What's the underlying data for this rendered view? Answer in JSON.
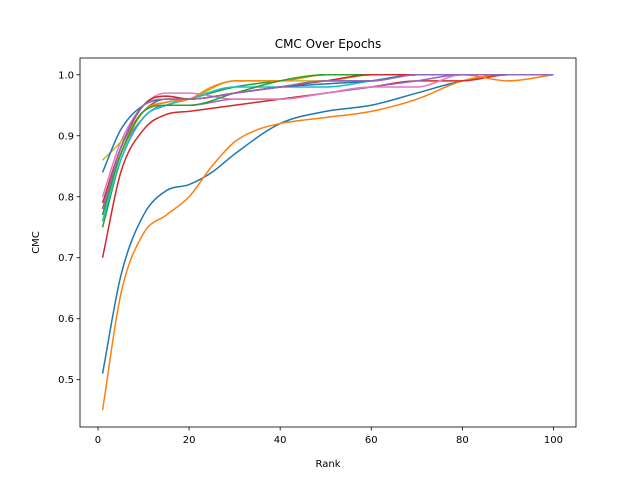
{
  "chart_data": {
    "type": "line",
    "title": "CMC Over Epochs",
    "xlabel": "Rank",
    "ylabel": "CMC",
    "xlim": [
      -3.95,
      104.95
    ],
    "ylim": [
      0.4225,
      1.0275
    ],
    "xticks": [
      0,
      20,
      40,
      60,
      80,
      100
    ],
    "xtick_labels": [
      "0",
      "20",
      "40",
      "60",
      "80",
      "100"
    ],
    "yticks": [
      0.5,
      0.6,
      0.7,
      0.8,
      0.9,
      1.0
    ],
    "ytick_labels": [
      "0.5",
      "0.6",
      "0.7",
      "0.8",
      "0.9",
      "1.0"
    ],
    "grid": false,
    "legend": "none",
    "series": [
      {
        "color": "#1f77b4",
        "x": [
          1,
          5,
          10,
          15,
          20,
          25,
          30,
          40,
          50,
          60,
          70,
          80,
          90,
          100
        ],
        "y": [
          0.51,
          0.67,
          0.77,
          0.81,
          0.82,
          0.84,
          0.87,
          0.92,
          0.94,
          0.95,
          0.97,
          0.99,
          1.0,
          1.0
        ]
      },
      {
        "color": "#ff7f0e",
        "x": [
          1,
          5,
          10,
          15,
          20,
          25,
          30,
          35,
          40,
          50,
          60,
          70,
          80,
          90,
          100
        ],
        "y": [
          0.45,
          0.64,
          0.74,
          0.77,
          0.8,
          0.85,
          0.89,
          0.91,
          0.92,
          0.93,
          0.94,
          0.96,
          0.99,
          1.0,
          1.0
        ]
      },
      {
        "color": "#d62728",
        "x": [
          1,
          5,
          10,
          15,
          20,
          30,
          40,
          50,
          60,
          70,
          80,
          90,
          100
        ],
        "y": [
          0.7,
          0.84,
          0.91,
          0.935,
          0.94,
          0.95,
          0.96,
          0.97,
          0.98,
          0.99,
          0.99,
          1.0,
          1.0
        ]
      },
      {
        "color": "#2ca02c",
        "x": [
          1,
          5,
          10,
          15,
          20,
          30,
          40,
          50,
          60,
          70,
          80,
          90,
          100
        ],
        "y": [
          0.75,
          0.86,
          0.93,
          0.95,
          0.96,
          0.98,
          0.99,
          1.0,
          1.0,
          1.0,
          1.0,
          1.0,
          1.0
        ]
      },
      {
        "color": "#9467bd",
        "x": [
          1,
          5,
          10,
          15,
          20,
          30,
          40,
          50,
          60,
          70,
          80,
          90,
          100
        ],
        "y": [
          0.77,
          0.87,
          0.93,
          0.95,
          0.95,
          0.96,
          0.96,
          0.97,
          0.98,
          0.99,
          1.0,
          1.0,
          1.0
        ]
      },
      {
        "color": "#8c564b",
        "x": [
          1,
          5,
          10,
          15,
          20,
          30,
          40,
          50,
          60,
          70,
          80,
          90,
          100
        ],
        "y": [
          0.78,
          0.88,
          0.94,
          0.96,
          0.96,
          0.97,
          0.98,
          0.99,
          0.99,
          1.0,
          1.0,
          1.0,
          1.0
        ]
      },
      {
        "color": "#e377c2",
        "x": [
          1,
          5,
          10,
          15,
          20,
          30,
          40,
          50,
          60,
          70,
          80,
          90,
          100
        ],
        "y": [
          0.8,
          0.89,
          0.95,
          0.97,
          0.97,
          0.96,
          0.96,
          0.97,
          0.98,
          0.98,
          1.0,
          1.0,
          1.0
        ]
      },
      {
        "color": "#7f7f7f",
        "x": [
          1,
          5,
          10,
          15,
          20,
          30,
          40,
          50,
          60,
          70,
          80,
          90,
          100
        ],
        "y": [
          0.78,
          0.88,
          0.95,
          0.965,
          0.96,
          0.97,
          0.98,
          0.99,
          0.99,
          1.0,
          1.0,
          1.0,
          1.0
        ]
      },
      {
        "color": "#bcbd22",
        "x": [
          1,
          5,
          10,
          15,
          20,
          30,
          40,
          50,
          60,
          70,
          80,
          90,
          100
        ],
        "y": [
          0.86,
          0.89,
          0.94,
          0.955,
          0.96,
          0.99,
          0.99,
          0.99,
          1.0,
          1.0,
          1.0,
          1.0,
          1.0
        ]
      },
      {
        "color": "#17becf",
        "x": [
          1,
          5,
          10,
          15,
          20,
          30,
          40,
          50,
          60,
          70,
          80,
          90,
          100
        ],
        "y": [
          0.76,
          0.86,
          0.93,
          0.95,
          0.96,
          0.98,
          0.98,
          0.98,
          0.99,
          1.0,
          1.0,
          1.0,
          1.0
        ]
      },
      {
        "color": "#1f77b4",
        "x": [
          1,
          5,
          10,
          15,
          20,
          30,
          40,
          50,
          60,
          70,
          80,
          90,
          100
        ],
        "y": [
          0.84,
          0.91,
          0.95,
          0.96,
          0.96,
          0.97,
          0.98,
          0.985,
          0.99,
          1.0,
          1.0,
          1.0,
          1.0
        ]
      },
      {
        "color": "#ff7f0e",
        "x": [
          1,
          5,
          10,
          15,
          20,
          25,
          30,
          35,
          40,
          50,
          60,
          70,
          80,
          90,
          100
        ],
        "y": [
          0.78,
          0.87,
          0.94,
          0.955,
          0.96,
          0.98,
          0.99,
          0.99,
          0.99,
          1.0,
          1.0,
          1.0,
          1.0,
          0.99,
          1.0
        ]
      },
      {
        "color": "#2ca02c",
        "x": [
          1,
          5,
          10,
          15,
          20,
          30,
          40,
          50,
          60,
          70,
          80,
          90,
          100
        ],
        "y": [
          0.77,
          0.87,
          0.94,
          0.95,
          0.95,
          0.97,
          0.99,
          1.0,
          1.0,
          1.0,
          1.0,
          1.0,
          1.0
        ]
      },
      {
        "color": "#d62728",
        "x": [
          1,
          5,
          10,
          15,
          20,
          30,
          40,
          50,
          60,
          70,
          80,
          90,
          100
        ],
        "y": [
          0.79,
          0.88,
          0.95,
          0.965,
          0.96,
          0.97,
          0.98,
          0.99,
          1.0,
          1.0,
          1.0,
          1.0,
          1.0
        ]
      },
      {
        "color": "#9467bd",
        "x": [
          1,
          5,
          10,
          15,
          20,
          30,
          40,
          50,
          60,
          70,
          80,
          90,
          100
        ],
        "y": [
          0.78,
          0.88,
          0.95,
          0.96,
          0.96,
          0.97,
          0.98,
          0.99,
          0.99,
          1.0,
          1.0,
          1.0,
          1.0
        ]
      }
    ]
  }
}
